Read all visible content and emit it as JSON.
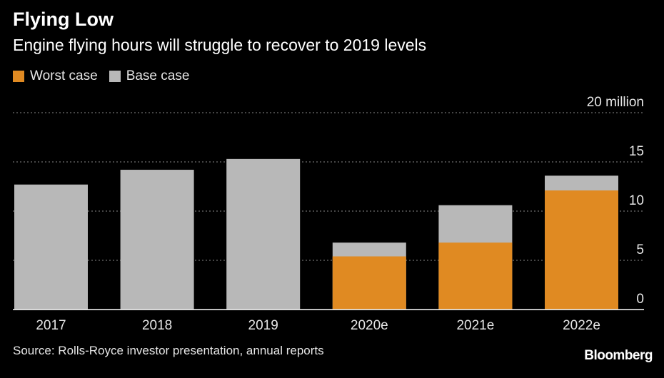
{
  "header": {
    "title": "Flying Low",
    "subtitle": "Engine flying hours will struggle to recover to 2019 levels"
  },
  "legend": [
    {
      "label": "Worst case",
      "color": "#e08a22"
    },
    {
      "label": "Base case",
      "color": "#b8b8b8"
    }
  ],
  "footer": {
    "source": "Source: Rolls-Royce investor presentation, annual reports",
    "brand": "Bloomberg"
  },
  "colors": {
    "background": "#000000",
    "worst": "#e08a22",
    "base": "#b8b8b8",
    "grid": "#8a8a8a"
  },
  "chart_data": {
    "type": "bar",
    "stacked": "overlay",
    "categories": [
      "2017",
      "2018",
      "2019",
      "2020e",
      "2021e",
      "2022e"
    ],
    "series": [
      {
        "name": "Base case",
        "values": [
          12.7,
          14.2,
          15.3,
          6.8,
          10.6,
          13.6
        ]
      },
      {
        "name": "Worst case",
        "values": [
          null,
          null,
          null,
          5.4,
          6.8,
          12.1
        ]
      }
    ],
    "yticks": [
      0,
      5,
      10,
      15,
      20
    ],
    "ytick_labels": [
      "0",
      "5",
      "10",
      "15",
      "20 million"
    ],
    "ylim": [
      0,
      20
    ],
    "grid": true,
    "legend_position": "top-left"
  }
}
